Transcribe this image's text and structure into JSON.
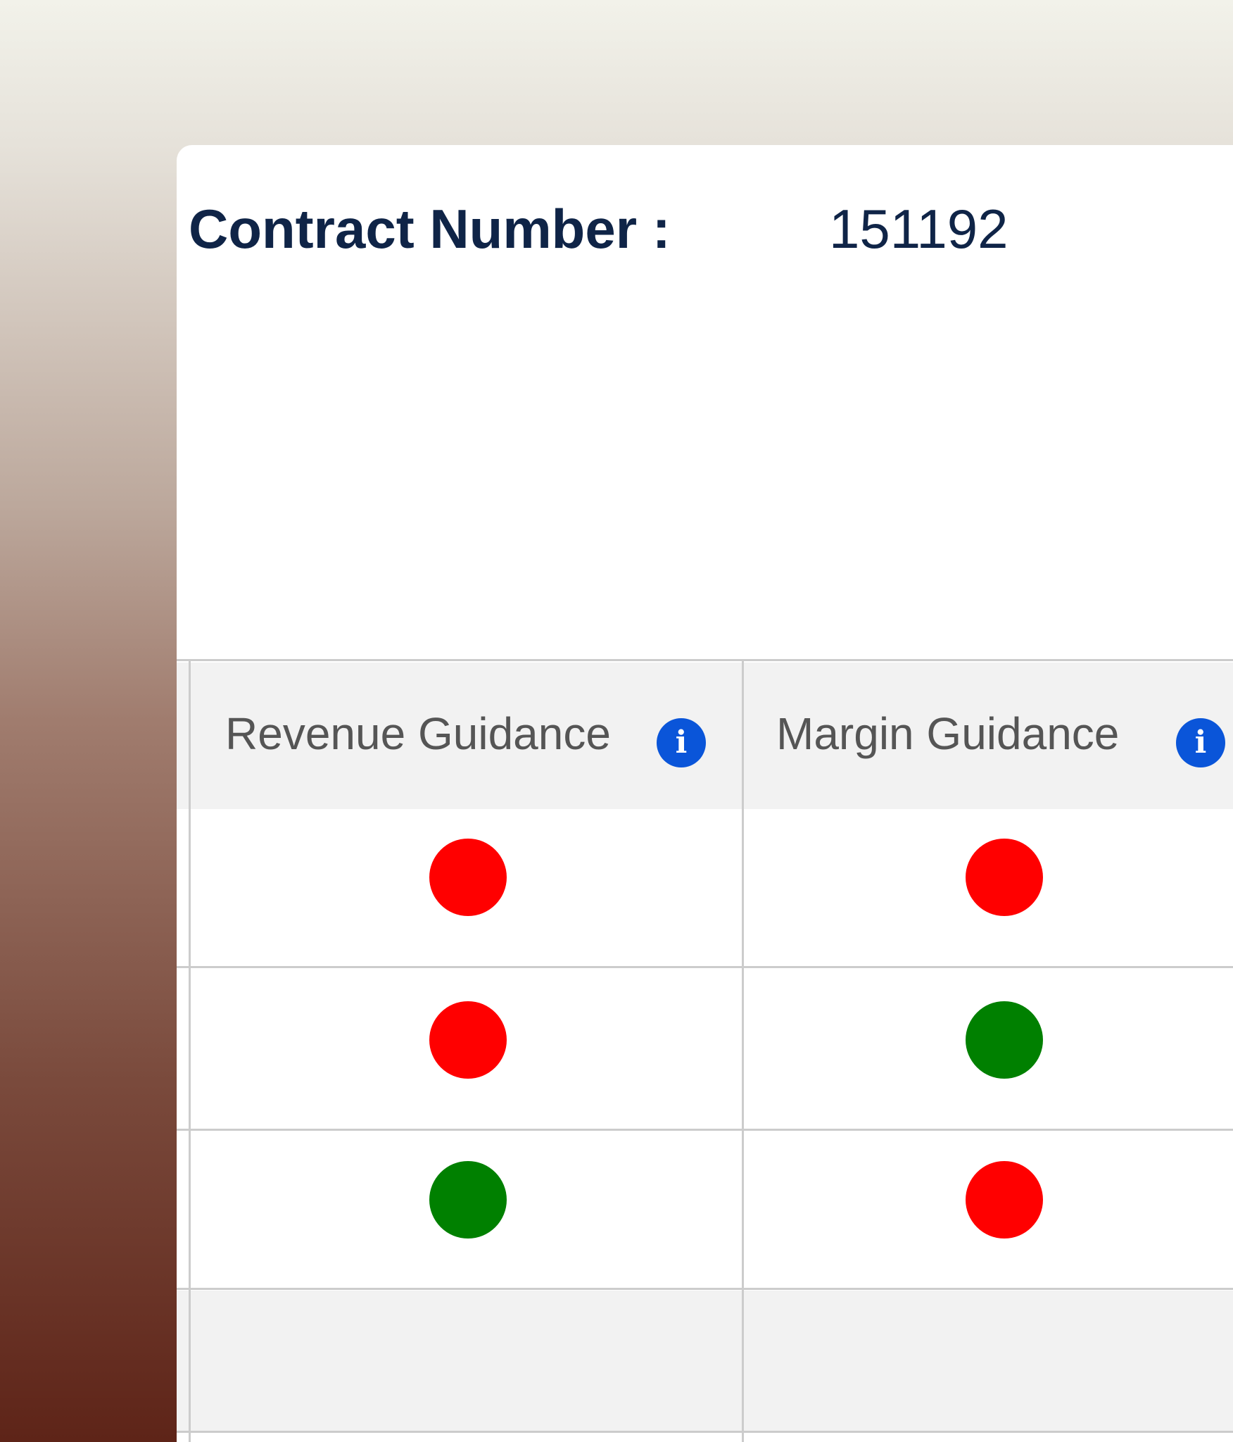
{
  "contract": {
    "label": "Contract Number :",
    "value": "151192"
  },
  "table": {
    "columns": [
      {
        "label": "Revenue Guidance",
        "info_icon": "info-icon"
      },
      {
        "label": "Margin Guidance",
        "info_icon": "info-icon"
      }
    ],
    "rows": [
      {
        "revenue": "red",
        "margin": "red"
      },
      {
        "revenue": "red",
        "margin": "green"
      },
      {
        "revenue": "green",
        "margin": "red"
      }
    ]
  },
  "colors": {
    "red": "#ff0000",
    "green": "#008000",
    "info": "#0a55d9",
    "title": "#0f2447"
  }
}
